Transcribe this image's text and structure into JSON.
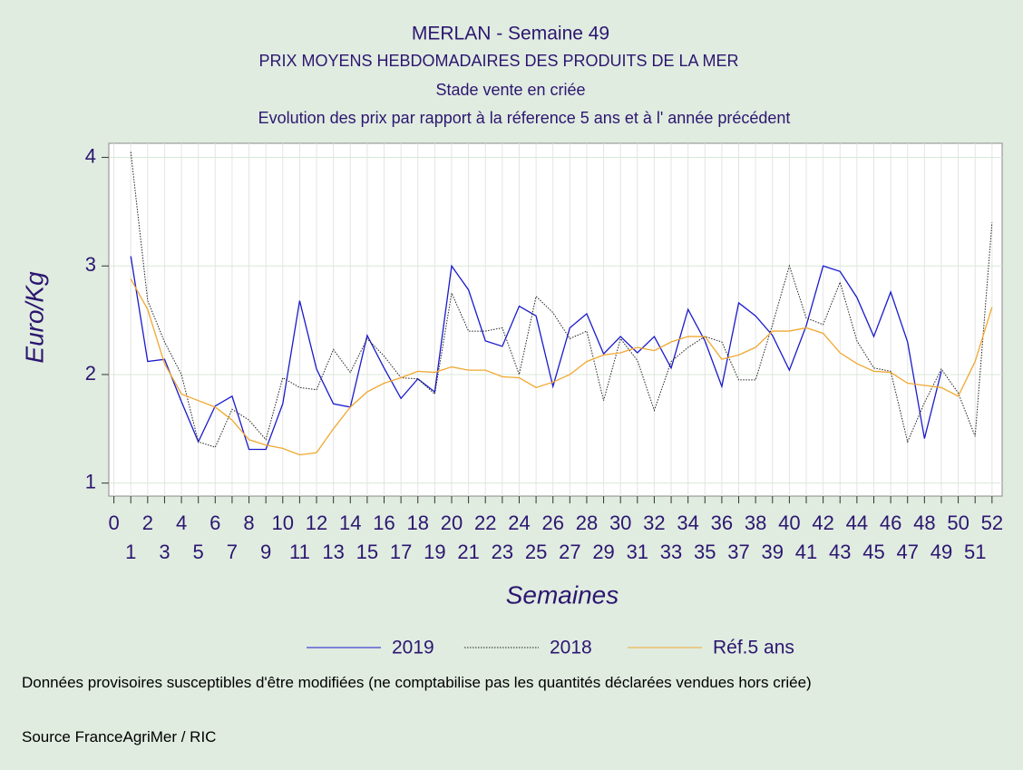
{
  "chart_data": {
    "type": "line",
    "title": "MERLAN - Semaine 49",
    "subtitle": "PRIX MOYENS HEBDOMADAIRES DES PRODUITS DE LA MER",
    "subtitle2": "Stade vente en criée",
    "subtitle3": "Evolution des prix par rapport à la réference 5 ans et à l' année précédent",
    "y_label": "Euro/Kg",
    "x_label": "Semaines",
    "x": [
      1,
      2,
      3,
      4,
      5,
      6,
      7,
      8,
      9,
      10,
      11,
      12,
      13,
      14,
      15,
      16,
      17,
      18,
      19,
      20,
      21,
      22,
      23,
      24,
      25,
      26,
      27,
      28,
      29,
      30,
      31,
      32,
      33,
      34,
      35,
      36,
      37,
      38,
      39,
      40,
      41,
      42,
      43,
      44,
      45,
      46,
      47,
      48,
      49,
      50,
      51,
      52
    ],
    "series": [
      {
        "name": "2019",
        "color": "#1a1acc",
        "dash": "solid",
        "values": [
          3.09,
          2.12,
          2.14,
          1.75,
          1.38,
          1.71,
          1.8,
          1.31,
          1.31,
          1.73,
          2.68,
          2.05,
          1.73,
          1.7,
          2.36,
          2.06,
          1.78,
          1.96,
          1.84,
          3.0,
          2.78,
          2.31,
          2.26,
          2.63,
          2.54,
          1.89,
          2.43,
          2.56,
          2.19,
          2.35,
          2.2,
          2.35,
          2.06,
          2.6,
          2.31,
          1.89,
          2.66,
          2.54,
          2.36,
          2.04,
          2.45,
          3.0,
          2.95,
          2.71,
          2.35,
          2.76,
          2.3,
          1.41,
          2.03,
          null,
          null,
          null
        ]
      },
      {
        "name": "2018",
        "color": "#222222",
        "dash": "dotted",
        "values": [
          4.05,
          2.68,
          2.3,
          2.0,
          1.38,
          1.33,
          1.68,
          1.58,
          1.4,
          1.97,
          1.88,
          1.86,
          2.23,
          2.02,
          2.33,
          2.17,
          1.97,
          1.96,
          1.82,
          2.75,
          2.4,
          2.4,
          2.43,
          2.0,
          2.72,
          2.57,
          2.33,
          2.4,
          1.76,
          2.33,
          2.13,
          1.67,
          2.12,
          2.25,
          2.35,
          2.3,
          1.95,
          1.95,
          2.46,
          3.0,
          2.52,
          2.46,
          2.85,
          2.31,
          2.06,
          2.03,
          1.38,
          1.74,
          2.05,
          1.83,
          1.43,
          3.4
        ]
      },
      {
        "name": "Réf.5 ans",
        "color": "#f0a830",
        "dash": "solid",
        "values": [
          2.88,
          2.6,
          2.1,
          1.82,
          1.76,
          1.7,
          1.58,
          1.4,
          1.35,
          1.32,
          1.26,
          1.28,
          1.5,
          1.7,
          1.84,
          1.92,
          1.97,
          2.03,
          2.02,
          2.07,
          2.04,
          2.04,
          1.98,
          1.97,
          1.88,
          1.93,
          2.0,
          2.12,
          2.18,
          2.2,
          2.25,
          2.22,
          2.3,
          2.35,
          2.35,
          2.14,
          2.18,
          2.25,
          2.4,
          2.4,
          2.43,
          2.38,
          2.2,
          2.1,
          2.03,
          2.02,
          1.92,
          1.9,
          1.88,
          1.8,
          2.12,
          2.62
        ]
      }
    ],
    "xlim": [
      -0.3,
      52.6
    ],
    "xticks": [
      0,
      1,
      2,
      3,
      4,
      5,
      6,
      7,
      8,
      9,
      10,
      11,
      12,
      13,
      14,
      15,
      16,
      17,
      18,
      19,
      20,
      21,
      22,
      23,
      24,
      25,
      26,
      27,
      28,
      29,
      30,
      31,
      32,
      33,
      34,
      35,
      36,
      37,
      38,
      39,
      40,
      41,
      42,
      43,
      44,
      45,
      46,
      47,
      48,
      49,
      50,
      51,
      52
    ],
    "ylim": [
      0.88,
      4.13
    ],
    "yticks": [
      1,
      2,
      3,
      4
    ],
    "grid": true,
    "notes": [
      "Données provisoires susceptibles d'être modifiées (ne comptabilise pas les quantités déclarées vendues hors criée)",
      "Source FranceAgriMer / RIC"
    ]
  }
}
